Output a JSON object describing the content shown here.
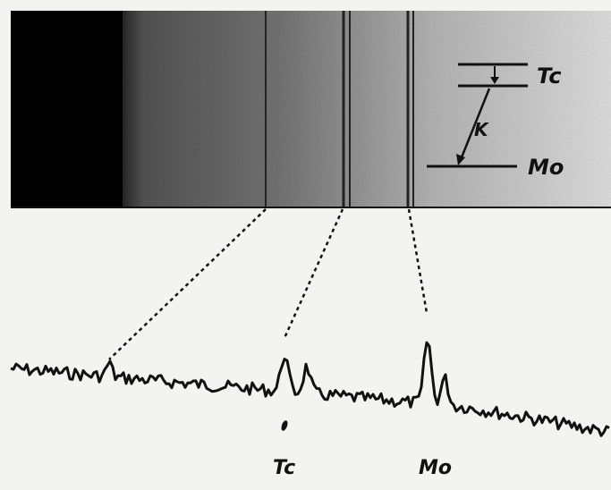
{
  "plate": {
    "level_diagram": {
      "upper_level": "Tc",
      "transition": "K",
      "lower_level": "Mo"
    }
  },
  "trace": {
    "peak_labels": [
      "Tc",
      "Mo"
    ]
  }
}
